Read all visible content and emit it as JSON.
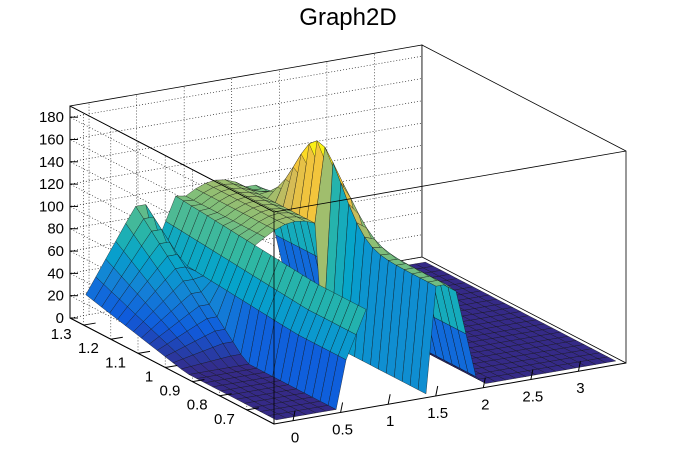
{
  "chart_data": {
    "type": "surface3d",
    "title": "Graph2D",
    "xlabel": "",
    "ylabel": "",
    "zlabel": "",
    "x_axis": {
      "range": [
        -0.2,
        3.5
      ],
      "ticks": [
        "0",
        "0.5",
        "1",
        "1.5",
        "2",
        "2.5",
        "3"
      ],
      "tick_values": [
        0,
        0.5,
        1,
        1.5,
        2,
        2.5,
        3
      ]
    },
    "y_axis": {
      "range": [
        0.6,
        1.35
      ],
      "ticks": [
        "0.7",
        "0.8",
        "0.9",
        "1",
        "1.1",
        "1.2",
        "1.3"
      ],
      "tick_values": [
        0.7,
        0.8,
        0.9,
        1.0,
        1.1,
        1.2,
        1.3
      ]
    },
    "z_axis": {
      "range": [
        0,
        190
      ],
      "ticks": [
        "0",
        "20",
        "40",
        "60",
        "80",
        "100",
        "120",
        "140",
        "160",
        "180"
      ],
      "tick_values": [
        0,
        20,
        40,
        60,
        80,
        100,
        120,
        140,
        160,
        180
      ]
    },
    "grid": true,
    "palette": [
      "#352a87",
      "#0f5cdd",
      "#1481d6",
      "#06a4ca",
      "#2eb7a4",
      "#87bf77",
      "#d1bb59",
      "#fec832",
      "#f9fb0e"
    ]
  }
}
